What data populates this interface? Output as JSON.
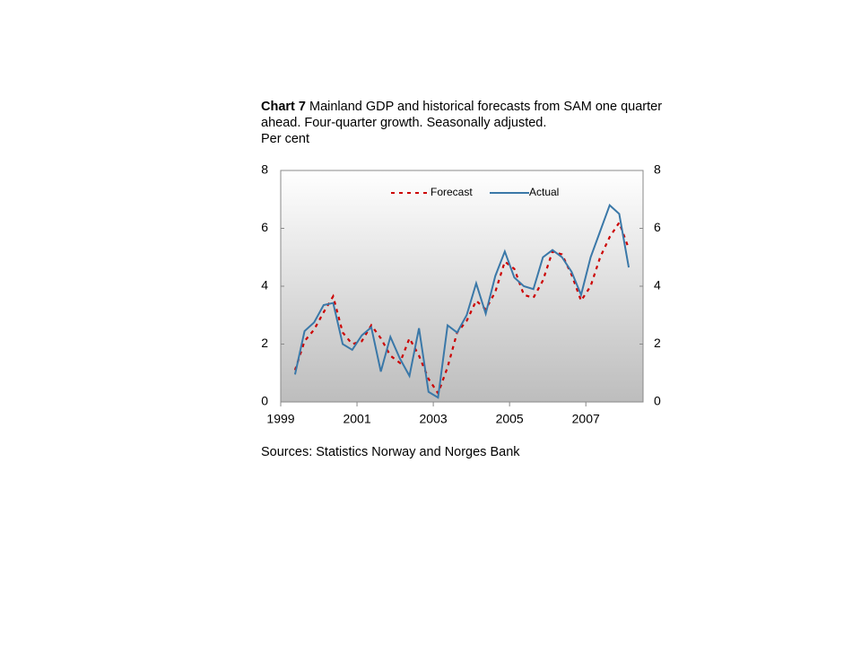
{
  "chart_data": {
    "type": "line",
    "title_label": "Chart 7",
    "title": "Mainland GDP and historical forecasts from SAM one quarter ahead. Four-quarter growth. Seasonally adjusted.",
    "subtitle": "Per cent",
    "source": "Sources: Statistics Norway and Norges Bank",
    "x": [
      1999.375,
      1999.625,
      1999.875,
      2000.125,
      2000.375,
      2000.625,
      2000.875,
      2001.125,
      2001.375,
      2001.625,
      2001.875,
      2002.125,
      2002.375,
      2002.625,
      2002.875,
      2003.125,
      2003.375,
      2003.625,
      2003.875,
      2004.125,
      2004.375,
      2004.625,
      2004.875,
      2005.125,
      2005.375,
      2005.625,
      2005.875,
      2006.125,
      2006.375,
      2006.625,
      2006.875,
      2007.125,
      2007.375,
      2007.625,
      2007.875,
      2008.125
    ],
    "series": [
      {
        "name": "Forecast",
        "color": "#cc0000",
        "dash": true,
        "values": [
          1.1,
          2.1,
          2.5,
          3.1,
          3.65,
          2.4,
          2.0,
          2.1,
          2.65,
          2.2,
          1.6,
          1.35,
          2.2,
          1.6,
          0.8,
          0.3,
          1.2,
          2.4,
          2.8,
          3.5,
          3.2,
          3.8,
          4.85,
          4.6,
          3.7,
          3.6,
          4.2,
          5.2,
          5.1,
          4.4,
          3.5,
          4.0,
          5.0,
          5.7,
          6.2,
          5.3
        ]
      },
      {
        "name": "Actual",
        "color": "#3a78a8",
        "dash": false,
        "values": [
          0.95,
          2.45,
          2.75,
          3.35,
          3.42,
          2.0,
          1.8,
          2.3,
          2.58,
          1.05,
          2.25,
          1.5,
          0.9,
          2.55,
          0.35,
          0.15,
          2.65,
          2.4,
          3.0,
          4.1,
          3.05,
          4.35,
          5.2,
          4.3,
          4.0,
          3.9,
          5.0,
          5.25,
          5.0,
          4.5,
          3.7,
          5.0,
          5.9,
          6.8,
          6.5,
          4.65
        ]
      }
    ],
    "xlim": [
      1999,
      2008.5
    ],
    "xticks": [
      1999,
      2001,
      2003,
      2005,
      2007
    ],
    "ylim": [
      0,
      8
    ],
    "yticks": [
      0,
      2,
      4,
      6,
      8
    ],
    "y2lim": [
      0,
      8
    ],
    "y2ticks": [
      0,
      2,
      4,
      6,
      8
    ],
    "legend": "top"
  }
}
